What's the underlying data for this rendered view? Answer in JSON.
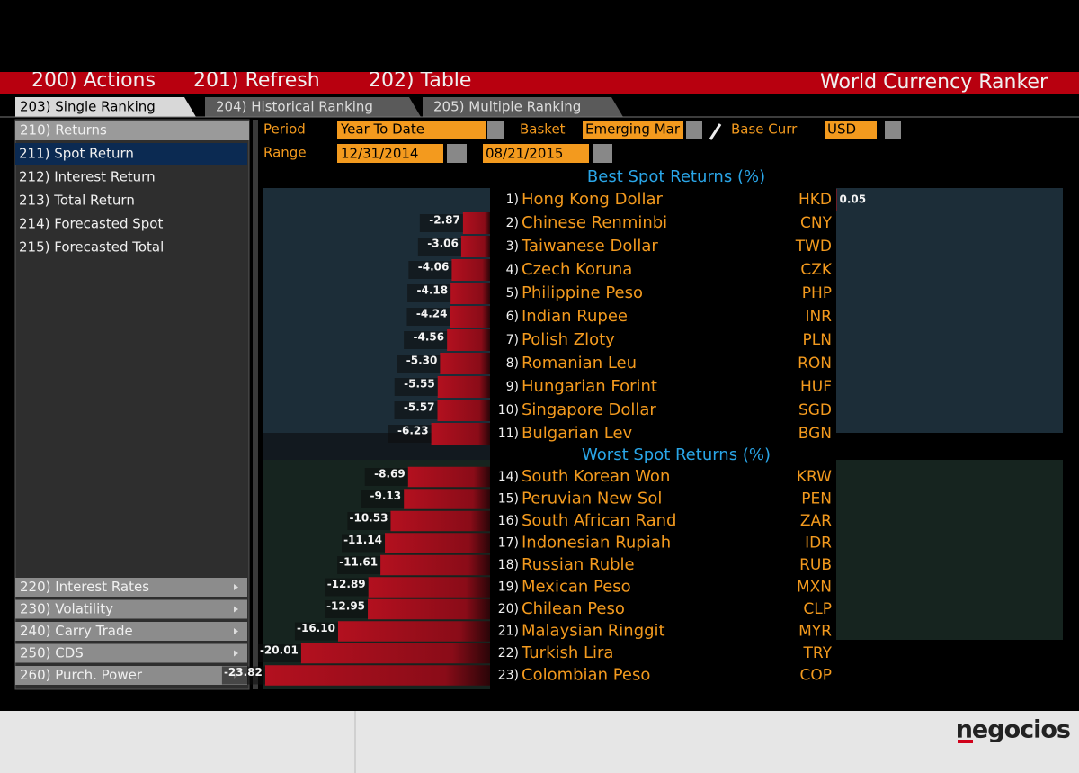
{
  "toolbar": {
    "actions": "200) Actions",
    "refresh": "201) Refresh",
    "table": "202) Table",
    "title": "World Currency Ranker"
  },
  "tabs": [
    "203) Single Ranking",
    "204) Historical Ranking",
    "205) Multiple Ranking"
  ],
  "sidebar": {
    "header": "210) Returns",
    "items": [
      "211) Spot Return",
      "212) Interest Return",
      "213) Total Return",
      "214) Forecasted Spot",
      "215) Forecasted Total"
    ],
    "sections": [
      "220) Interest Rates",
      "230) Volatility",
      "240) Carry Trade",
      "250) CDS",
      "260) Purch. Power"
    ]
  },
  "controls": {
    "period_label": "Period",
    "period": "Year To Date",
    "basket_label": "Basket",
    "basket": "Emerging Mar",
    "base_label": "Base Curr",
    "base": "USD",
    "range_label": "Range",
    "start": "12/31/2014",
    "end": "08/21/2015"
  },
  "best": {
    "title": "Best Spot Returns (%)",
    "rows": [
      {
        "rank": "1)",
        "name": "Hong Kong Dollar",
        "code": "HKD",
        "value": 0.05
      },
      {
        "rank": "2)",
        "name": "Chinese Renminbi",
        "code": "CNY",
        "value": -2.87
      },
      {
        "rank": "3)",
        "name": "Taiwanese Dollar",
        "code": "TWD",
        "value": -3.06
      },
      {
        "rank": "4)",
        "name": "Czech Koruna",
        "code": "CZK",
        "value": -4.06
      },
      {
        "rank": "5)",
        "name": "Philippine Peso",
        "code": "PHP",
        "value": -4.18
      },
      {
        "rank": "6)",
        "name": "Indian Rupee",
        "code": "INR",
        "value": -4.24
      },
      {
        "rank": "7)",
        "name": "Polish Zloty",
        "code": "PLN",
        "value": -4.56
      },
      {
        "rank": "8)",
        "name": "Romanian Leu",
        "code": "RON",
        "value": -5.3,
        "value_label": "-5.30"
      },
      {
        "rank": "9)",
        "name": "Hungarian Forint",
        "code": "HUF",
        "value": -5.55
      },
      {
        "rank": "10)",
        "name": "Singapore Dollar",
        "code": "SGD",
        "value": -5.57
      },
      {
        "rank": "11)",
        "name": "Bulgarian Lev",
        "code": "BGN",
        "value": -6.23
      }
    ]
  },
  "worst": {
    "title": "Worst Spot Returns (%)",
    "rows": [
      {
        "rank": "14)",
        "name": "South Korean Won",
        "code": "KRW",
        "value": -8.69
      },
      {
        "rank": "15)",
        "name": "Peruvian New Sol",
        "code": "PEN",
        "value": -9.13
      },
      {
        "rank": "16)",
        "name": "South African Rand",
        "code": "ZAR",
        "value": -10.53
      },
      {
        "rank": "17)",
        "name": "Indonesian Rupiah",
        "code": "IDR",
        "value": -11.14
      },
      {
        "rank": "18)",
        "name": "Russian Ruble",
        "code": "RUB",
        "value": -11.61
      },
      {
        "rank": "19)",
        "name": "Mexican Peso",
        "code": "MXN",
        "value": -12.89
      },
      {
        "rank": "20)",
        "name": "Chilean Peso",
        "code": "CLP",
        "value": -12.95
      },
      {
        "rank": "21)",
        "name": "Malaysian Ringgit",
        "code": "MYR",
        "value": -16.1,
        "value_label": "-16.10"
      },
      {
        "rank": "22)",
        "name": "Turkish Lira",
        "code": "TRY",
        "value": -20.01
      },
      {
        "rank": "23)",
        "name": "Colombian Peso",
        "code": "COP",
        "value": -23.82
      }
    ]
  },
  "footer": {
    "logo": "negocios"
  }
}
